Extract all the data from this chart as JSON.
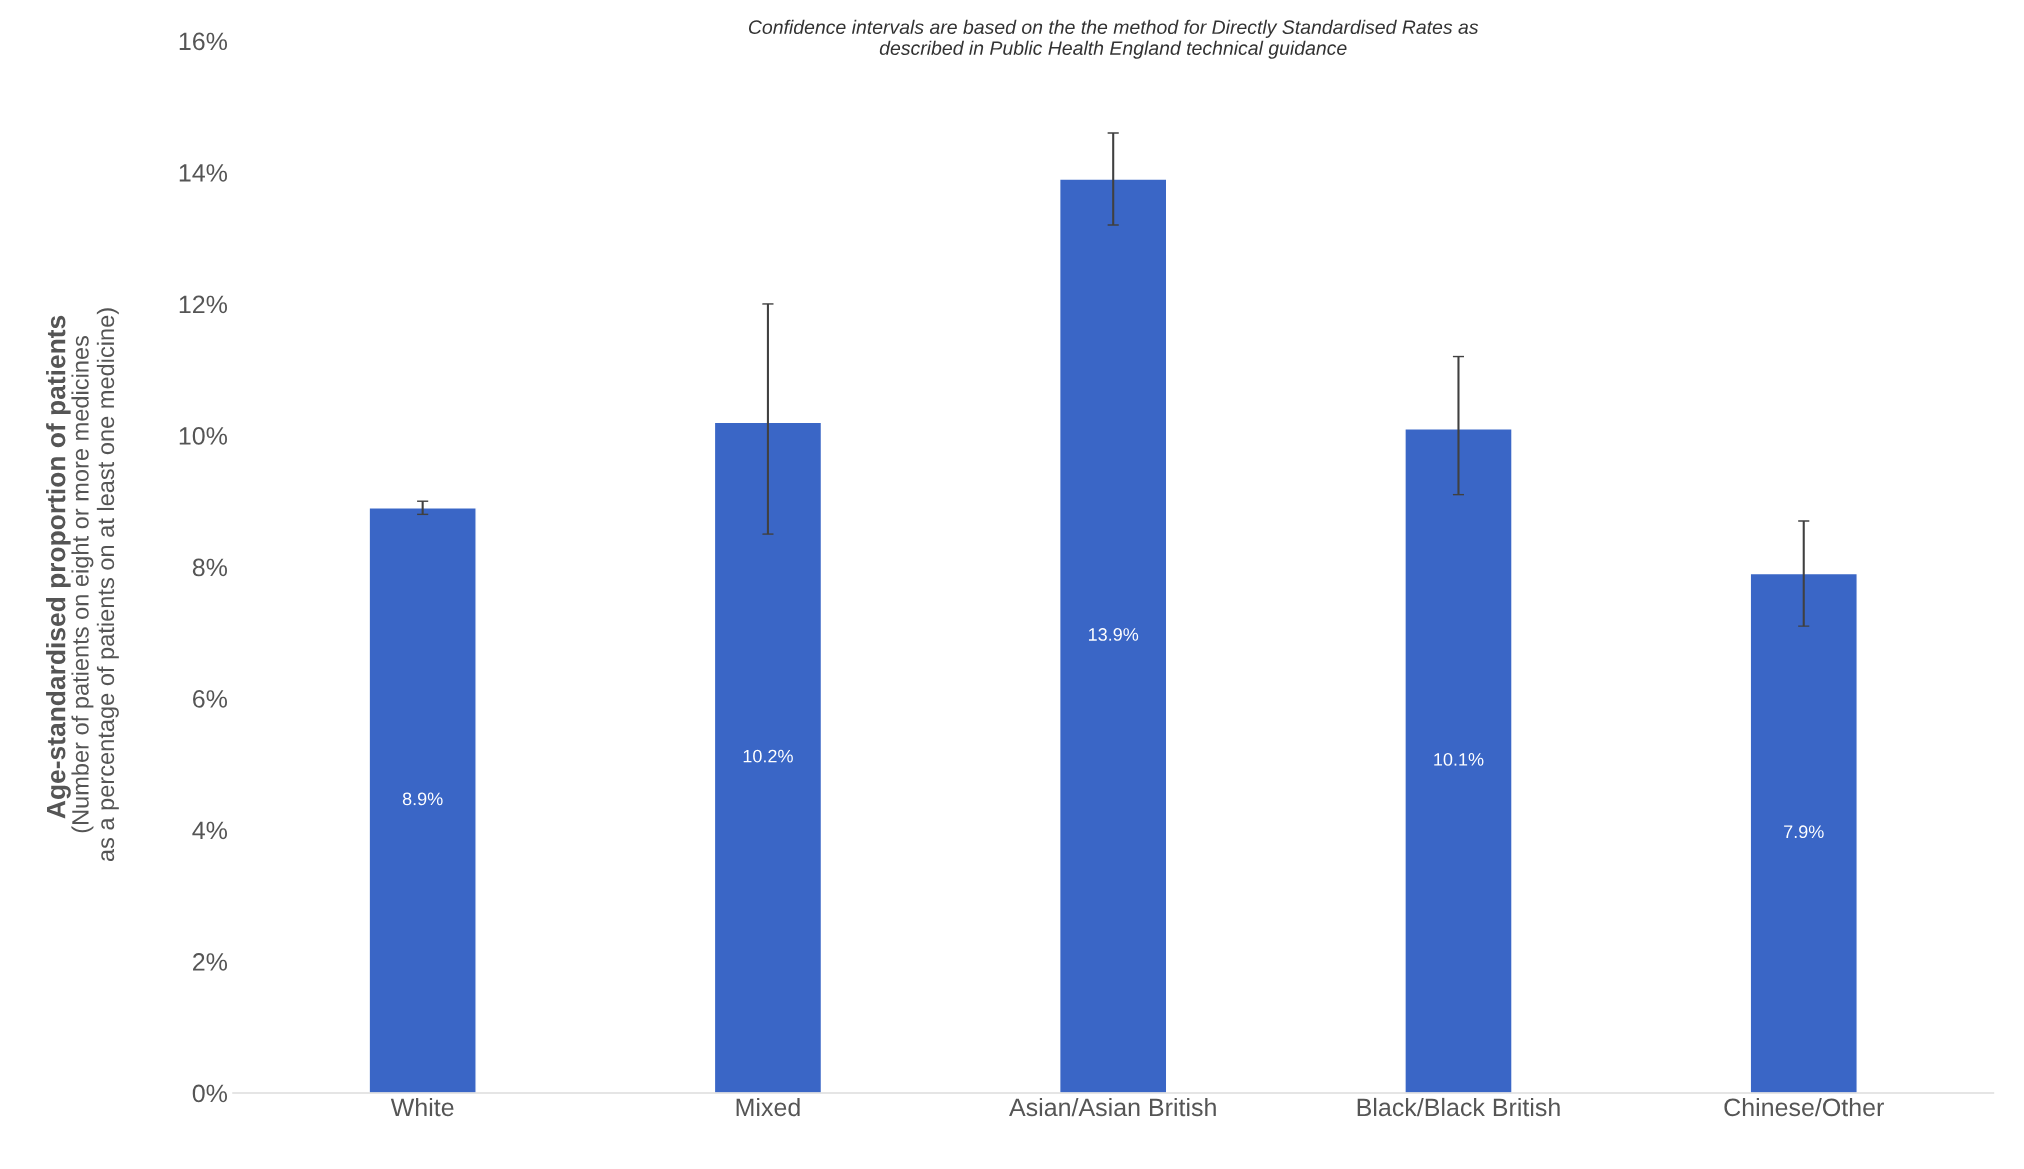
{
  "chart_data": {
    "type": "bar",
    "title": "Confidence intervals are based on the the method for Directly Standardised Rates as\ndescribed in Public Health England technical guidance",
    "ylabel": "Age-standardised proportion of patients",
    "annotations": [
      "(Number of patients on eight or more medicines\nas a percentage of patients on at least one medicine)"
    ],
    "categories": [
      "White",
      "Mixed",
      "Asian/Asian British",
      "Black/Black British",
      "Chinese/Other"
    ],
    "series": [
      {
        "color": "#3a66c6",
        "values": [
          8.9,
          10.2,
          13.9,
          10.1,
          7.9
        ],
        "value_labels": [
          "8.9%",
          "10.2%",
          "13.9%",
          "10.1%",
          "7.9%"
        ],
        "errors": [
          [
            8.8,
            9.0
          ],
          [
            8.5,
            12.0
          ],
          [
            13.2,
            14.6
          ],
          [
            9.1,
            11.2
          ],
          [
            7.1,
            8.7
          ]
        ]
      }
    ],
    "ylim": [
      0,
      16
    ],
    "yticks": [
      {
        "value": 0,
        "label": "0%"
      },
      {
        "value": 2,
        "label": "2%"
      },
      {
        "value": 4,
        "label": "4%"
      },
      {
        "value": 6,
        "label": "6%"
      },
      {
        "value": 8,
        "label": "8%"
      },
      {
        "value": 10,
        "label": "10%"
      },
      {
        "value": 12,
        "label": "12%"
      },
      {
        "value": 14,
        "label": "14%"
      },
      {
        "value": 16,
        "label": "16%"
      }
    ],
    "grid": false,
    "legend": false
  }
}
